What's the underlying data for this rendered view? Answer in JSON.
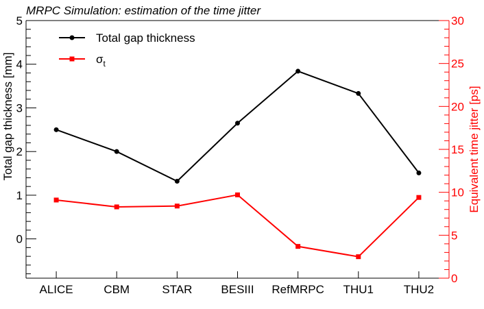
{
  "chart_data": {
    "type": "line",
    "title": "MRPC Simulation: estimation of the time jitter",
    "categories": [
      "ALICE",
      "CBM",
      "STAR",
      "BESIII",
      "RefMRPC",
      "THU1",
      "THU2"
    ],
    "ylabel": "Total gap thickness [mm]",
    "y2label": "Equivalent time jitter [ps]",
    "ylim": [
      -0.9,
      5
    ],
    "y2lim": [
      0,
      30
    ],
    "yticks": [
      "0",
      "1",
      "2",
      "3",
      "4",
      "5"
    ],
    "y2ticks": [
      "0",
      "5",
      "10",
      "15",
      "20",
      "25",
      "30"
    ],
    "legend_position": "top-left",
    "series": [
      {
        "name": "Total gap thickness",
        "axis": "left",
        "color": "#000000",
        "marker": "circle",
        "values": [
          2.5,
          2.0,
          1.32,
          2.65,
          3.84,
          3.33,
          1.51
        ]
      },
      {
        "name": "σt",
        "axis": "right",
        "color": "#ff0000",
        "marker": "square",
        "values": [
          9.1,
          8.3,
          8.4,
          9.7,
          3.7,
          2.5,
          9.4
        ]
      }
    ],
    "legend": {
      "entry1": "Total gap thickness",
      "entry2_main": "σ",
      "entry2_sub": "t"
    }
  }
}
